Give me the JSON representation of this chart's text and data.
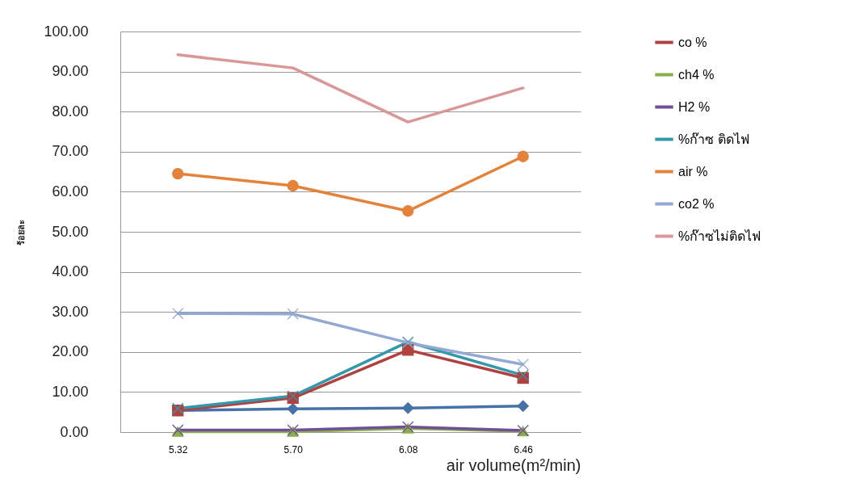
{
  "chart_data": {
    "type": "line",
    "ylabel": "ร้อยละ",
    "xlabel": "air volume(m²/min)",
    "categories": [
      "5.32",
      "5.70",
      "6.08",
      "6.46"
    ],
    "ylim": [
      0,
      100
    ],
    "yticks": [
      {
        "value": 0,
        "label": "0.00"
      },
      {
        "value": 10,
        "label": "10.00"
      },
      {
        "value": 20,
        "label": "20.00"
      },
      {
        "value": 30,
        "label": "30.00"
      },
      {
        "value": 40,
        "label": "40.00"
      },
      {
        "value": 50,
        "label": "50.00"
      },
      {
        "value": 60,
        "label": "60.00"
      },
      {
        "value": 70,
        "label": "70.00"
      },
      {
        "value": 80,
        "label": "80.00"
      },
      {
        "value": 90,
        "label": "90.00"
      },
      {
        "value": 100,
        "label": "100.00"
      }
    ],
    "grid": "y",
    "legend": "right",
    "series": [
      {
        "color": "#4672a8",
        "marker": "diamond",
        "values": [
          5.4,
          5.8,
          6.0,
          6.5
        ]
      },
      {
        "name": "co %",
        "color": "#b0413e",
        "marker": "square",
        "values": [
          5.4,
          8.5,
          20.5,
          13.5
        ]
      },
      {
        "name": "ch4 %",
        "color": "#8aae4a",
        "marker": "triangle",
        "values": [
          0.1,
          0.1,
          0.9,
          0.2
        ]
      },
      {
        "name": "H2 %",
        "color": "#6f4f96",
        "marker": "cross",
        "values": [
          0.5,
          0.5,
          1.3,
          0.4
        ]
      },
      {
        "name": "%ก๊าซ ติดไฟ",
        "color": "#3398ac",
        "marker": "cross",
        "values": [
          5.9,
          9.0,
          22.5,
          14.2
        ]
      },
      {
        "name": "air %",
        "color": "#e5823a",
        "marker": "circle",
        "values": [
          64.5,
          61.5,
          55.2,
          68.8
        ]
      },
      {
        "name": "co2 %",
        "color": "#93a9d2",
        "marker": "cross",
        "values": [
          29.6,
          29.5,
          22.3,
          16.9
        ]
      },
      {
        "name": "%ก๊าซไม่ติดไฟ",
        "color": "#d99795",
        "marker": "none",
        "values": [
          94.2,
          90.9,
          77.4,
          85.9
        ]
      }
    ]
  }
}
